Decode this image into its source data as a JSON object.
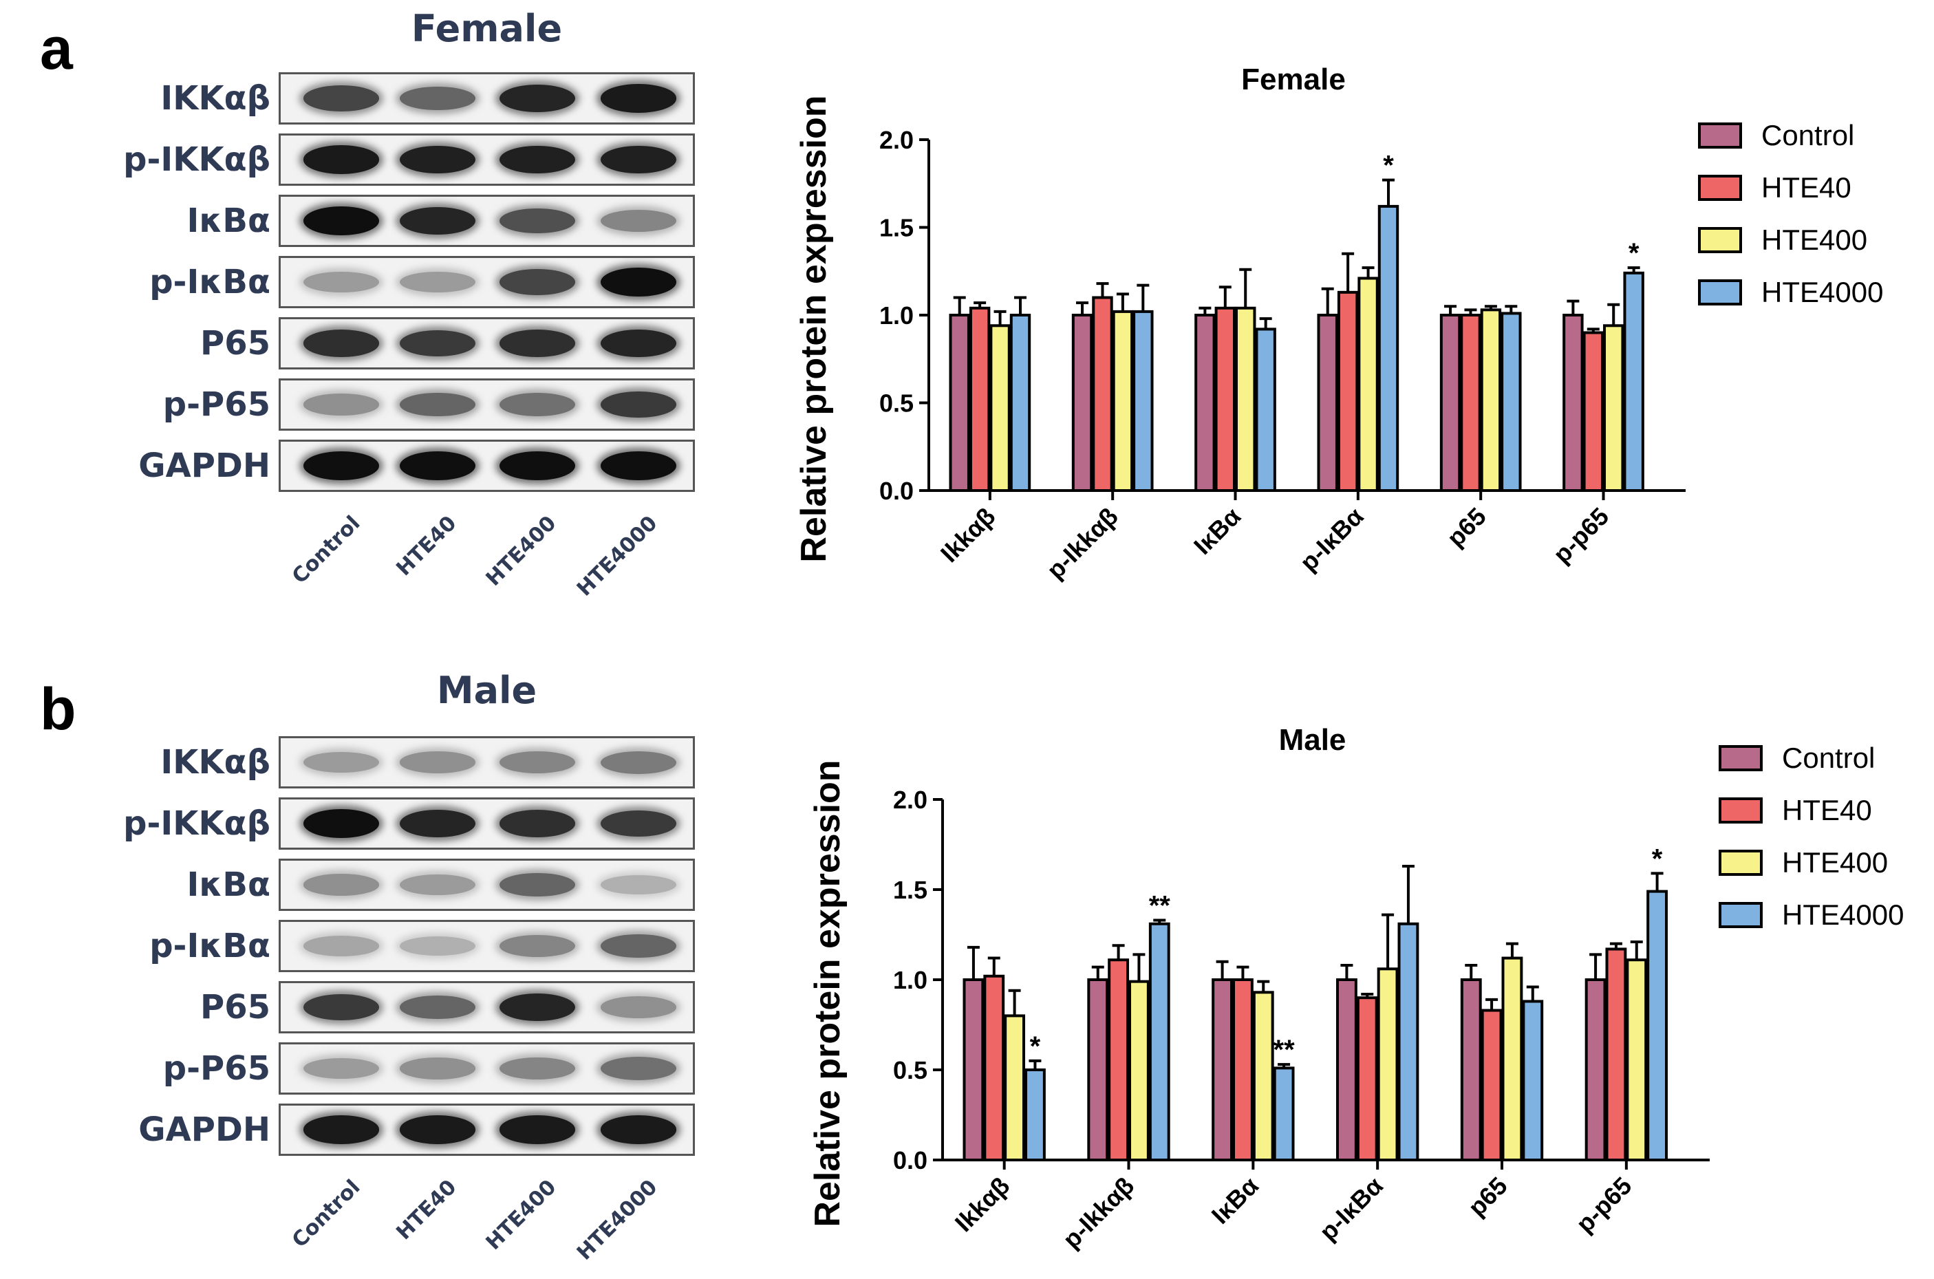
{
  "colors": {
    "Control": "#b86a8a",
    "HTE40": "#ef6666",
    "HTE400": "#f7f38a",
    "HTE4000": "#7fb2e0",
    "blot_text": "#2f3a55"
  },
  "panels": [
    {
      "letter": "a",
      "blot": {
        "title": "Female",
        "rows": [
          {
            "label": "IKKαβ",
            "intensities": [
              0.75,
              0.6,
              0.9,
              0.95
            ]
          },
          {
            "label": "p-IKKαβ",
            "intensities": [
              0.95,
              0.92,
              0.92,
              0.92
            ]
          },
          {
            "label": "IκBα",
            "intensities": [
              1.0,
              0.9,
              0.7,
              0.45
            ]
          },
          {
            "label": "p-IκBα",
            "intensities": [
              0.35,
              0.35,
              0.75,
              1.0
            ]
          },
          {
            "label": "P65",
            "intensities": [
              0.85,
              0.8,
              0.85,
              0.9
            ]
          },
          {
            "label": "p-P65",
            "intensities": [
              0.4,
              0.6,
              0.55,
              0.8
            ]
          },
          {
            "label": "GAPDH",
            "intensities": [
              1.0,
              1.0,
              1.0,
              1.0
            ]
          }
        ],
        "lanes": [
          "Control",
          "HTE40",
          "HTE400",
          "HTE4000"
        ]
      },
      "chart_data": {
        "type": "bar",
        "title": "Female",
        "ylabel": "Relative protein expression",
        "xlabel": "",
        "ylim": [
          0,
          2.0
        ],
        "yticks": [
          "0.0",
          "0.5",
          "1.0",
          "1.5",
          "2.0"
        ],
        "categories": [
          "Ikkαβ",
          "p-Ikkαβ",
          "IκBα",
          "p-IκBα",
          "p65",
          "p-p65"
        ],
        "legend_position": "top-right",
        "series": [
          {
            "name": "Control",
            "values": [
              1.0,
              1.0,
              1.0,
              1.0,
              1.0,
              1.0
            ],
            "errors": [
              0.1,
              0.07,
              0.04,
              0.15,
              0.05,
              0.08
            ]
          },
          {
            "name": "HTE40",
            "values": [
              1.04,
              1.1,
              1.04,
              1.13,
              1.0,
              0.9
            ],
            "errors": [
              0.03,
              0.08,
              0.12,
              0.22,
              0.03,
              0.02
            ]
          },
          {
            "name": "HTE400",
            "values": [
              0.94,
              1.02,
              1.04,
              1.21,
              1.03,
              0.94
            ],
            "errors": [
              0.08,
              0.1,
              0.22,
              0.06,
              0.02,
              0.12
            ]
          },
          {
            "name": "HTE4000",
            "values": [
              1.0,
              1.02,
              0.92,
              1.62,
              1.01,
              1.24
            ],
            "errors": [
              0.1,
              0.15,
              0.06,
              0.15,
              0.04,
              0.03
            ]
          }
        ],
        "annotations": [
          {
            "category": "p-IκBα",
            "series": "HTE4000",
            "text": "*"
          },
          {
            "category": "p-p65",
            "series": "HTE4000",
            "text": "*"
          }
        ]
      }
    },
    {
      "letter": "b",
      "blot": {
        "title": "Male",
        "rows": [
          {
            "label": "IKKαβ",
            "intensities": [
              0.35,
              0.4,
              0.45,
              0.5
            ]
          },
          {
            "label": "p-IKKαβ",
            "intensities": [
              1.0,
              0.9,
              0.85,
              0.8
            ]
          },
          {
            "label": "IκBα",
            "intensities": [
              0.4,
              0.35,
              0.6,
              0.25
            ]
          },
          {
            "label": "p-IκBα",
            "intensities": [
              0.3,
              0.25,
              0.45,
              0.6
            ]
          },
          {
            "label": "P65",
            "intensities": [
              0.8,
              0.6,
              0.9,
              0.4
            ]
          },
          {
            "label": "p-P65",
            "intensities": [
              0.35,
              0.4,
              0.45,
              0.55
            ]
          },
          {
            "label": "GAPDH",
            "intensities": [
              0.95,
              0.95,
              0.95,
              0.95
            ]
          }
        ],
        "lanes": [
          "Control",
          "HTE40",
          "HTE400",
          "HTE4000"
        ]
      },
      "chart_data": {
        "type": "bar",
        "title": "Male",
        "ylabel": "Relative protein expression",
        "xlabel": "",
        "ylim": [
          0,
          2.0
        ],
        "yticks": [
          "0.0",
          "0.5",
          "1.0",
          "1.5",
          "2.0"
        ],
        "categories": [
          "Ikkαβ",
          "p-Ikkαβ",
          "IκBα",
          "p-IκBα",
          "p65",
          "p-p65"
        ],
        "legend_position": "top-right",
        "series": [
          {
            "name": "Control",
            "values": [
              1.0,
              1.0,
              1.0,
              1.0,
              1.0,
              1.0
            ],
            "errors": [
              0.18,
              0.07,
              0.1,
              0.08,
              0.08,
              0.14
            ]
          },
          {
            "name": "HTE40",
            "values": [
              1.02,
              1.11,
              1.0,
              0.9,
              0.83,
              1.17
            ],
            "errors": [
              0.1,
              0.08,
              0.07,
              0.02,
              0.06,
              0.03
            ]
          },
          {
            "name": "HTE400",
            "values": [
              0.8,
              0.99,
              0.93,
              1.06,
              1.12,
              1.11
            ],
            "errors": [
              0.14,
              0.15,
              0.06,
              0.3,
              0.08,
              0.1
            ]
          },
          {
            "name": "HTE4000",
            "values": [
              0.5,
              1.31,
              0.51,
              1.31,
              0.88,
              1.49
            ],
            "errors": [
              0.05,
              0.02,
              0.02,
              0.32,
              0.08,
              0.1
            ]
          }
        ],
        "annotations": [
          {
            "category": "Ikkαβ",
            "series": "HTE4000",
            "text": "*"
          },
          {
            "category": "p-Ikkαβ",
            "series": "HTE4000",
            "text": "**"
          },
          {
            "category": "IκBα",
            "series": "HTE4000",
            "text": "**"
          },
          {
            "category": "p-p65",
            "series": "HTE4000",
            "text": "*"
          }
        ]
      }
    }
  ]
}
